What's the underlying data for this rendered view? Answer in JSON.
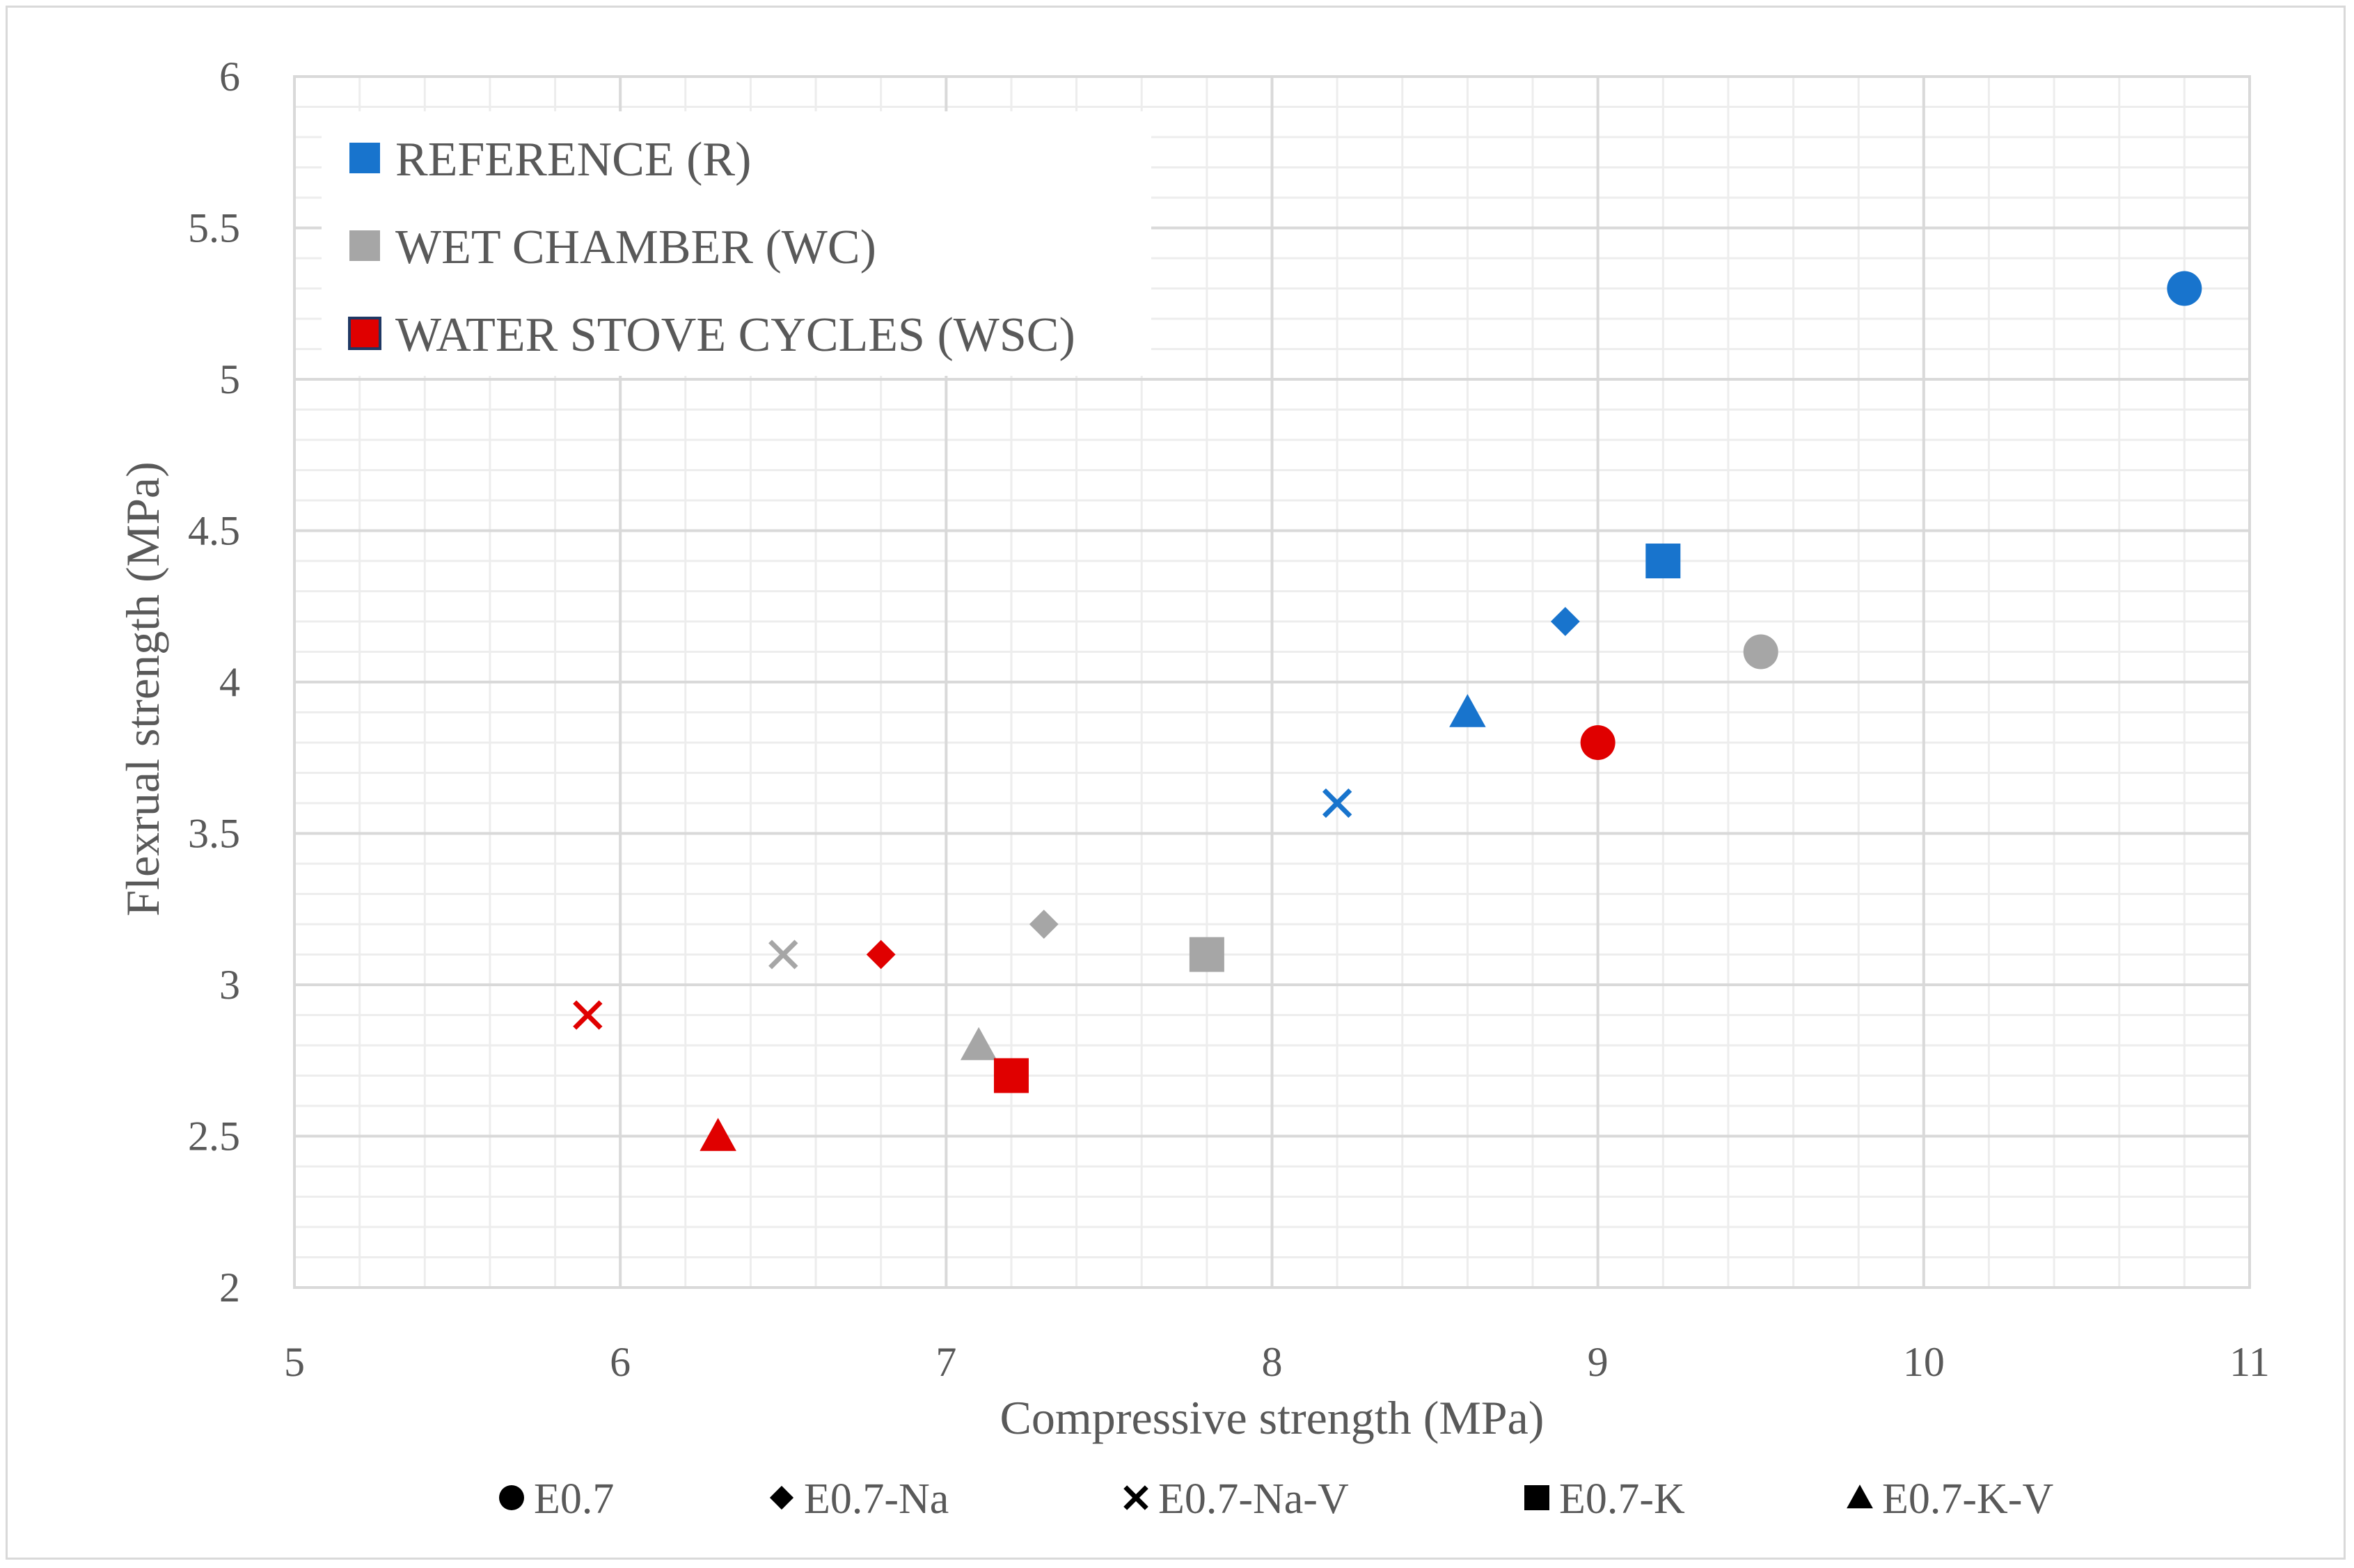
{
  "chart_data": {
    "type": "scatter",
    "title": "",
    "xlabel": "Compressive strength (MPa)",
    "ylabel": "Flexrual strength (MPa)",
    "xlim": [
      5,
      11
    ],
    "ylim": [
      2,
      6
    ],
    "x_ticks": [
      "5",
      "6",
      "7",
      "8",
      "9",
      "10",
      "11"
    ],
    "y_ticks": [
      "2",
      "2.5",
      "3",
      "3.5",
      "4",
      "4.5",
      "5",
      "5.5",
      "6"
    ],
    "grid": true,
    "color_legend": {
      "placement": "top-left",
      "entries": [
        {
          "label": "REFERENCE (R)",
          "color": "#1874CD"
        },
        {
          "label": "WET CHAMBER (WC)",
          "color": "#A6A6A6"
        },
        {
          "label": "WATER STOVE CYCLES (WSC)",
          "color": "#E00000"
        }
      ]
    },
    "marker_legend": {
      "placement": "bottom",
      "entries": [
        {
          "label": "E0.7",
          "marker": "circle"
        },
        {
          "label": "E0.7-Na",
          "marker": "diamond"
        },
        {
          "label": "E0.7-Na-V",
          "marker": "cross"
        },
        {
          "label": "E0.7-K",
          "marker": "square"
        },
        {
          "label": "E0.7-K-V",
          "marker": "triangle"
        }
      ]
    },
    "series": [
      {
        "name": "REFERENCE (R)",
        "color": "#1874CD",
        "points": [
          {
            "mix": "E0.7",
            "marker": "circle",
            "x": 10.8,
            "y": 5.3
          },
          {
            "mix": "E0.7-Na",
            "marker": "diamond",
            "x": 8.9,
            "y": 4.2
          },
          {
            "mix": "E0.7-Na-V",
            "marker": "cross",
            "x": 8.2,
            "y": 3.6
          },
          {
            "mix": "E0.7-K",
            "marker": "square",
            "x": 9.2,
            "y": 4.4
          },
          {
            "mix": "E0.7-K-V",
            "marker": "triangle",
            "x": 8.6,
            "y": 3.9
          }
        ]
      },
      {
        "name": "WET CHAMBER (WC)",
        "color": "#A6A6A6",
        "points": [
          {
            "mix": "E0.7",
            "marker": "circle",
            "x": 9.5,
            "y": 4.1
          },
          {
            "mix": "E0.7-Na",
            "marker": "diamond",
            "x": 7.3,
            "y": 3.2
          },
          {
            "mix": "E0.7-Na-V",
            "marker": "cross",
            "x": 6.5,
            "y": 3.1
          },
          {
            "mix": "E0.7-K",
            "marker": "square",
            "x": 7.8,
            "y": 3.1
          },
          {
            "mix": "E0.7-K-V",
            "marker": "triangle",
            "x": 7.1,
            "y": 2.8
          }
        ]
      },
      {
        "name": "WATER STOVE CYCLES (WSC)",
        "color": "#E00000",
        "points": [
          {
            "mix": "E0.7",
            "marker": "circle",
            "x": 9.0,
            "y": 3.8
          },
          {
            "mix": "E0.7-Na",
            "marker": "diamond",
            "x": 6.8,
            "y": 3.1
          },
          {
            "mix": "E0.7-Na-V",
            "marker": "cross",
            "x": 5.9,
            "y": 2.9
          },
          {
            "mix": "E0.7-K",
            "marker": "square",
            "x": 7.2,
            "y": 2.7
          },
          {
            "mix": "E0.7-K-V",
            "marker": "triangle",
            "x": 6.3,
            "y": 2.5
          }
        ]
      }
    ]
  }
}
